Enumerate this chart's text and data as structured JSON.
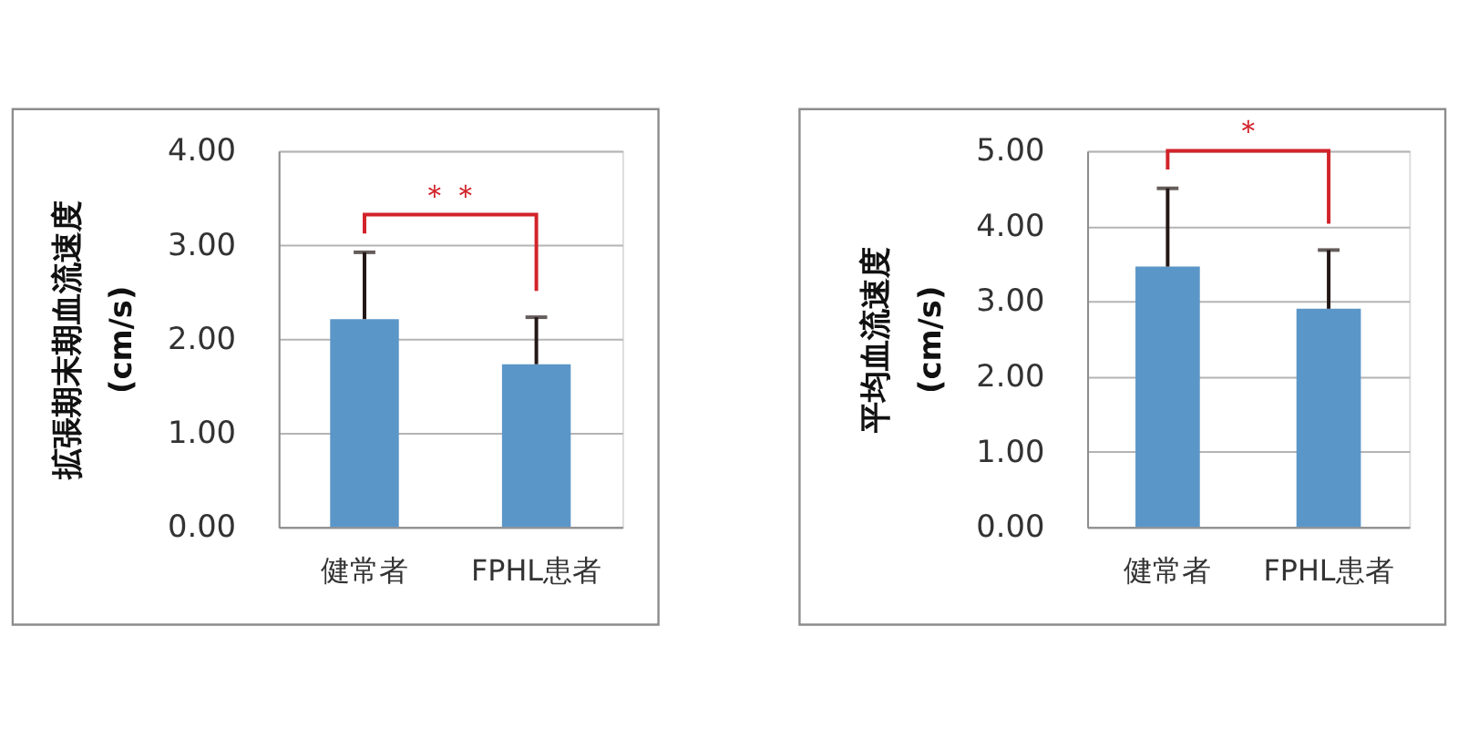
{
  "chart_data": [
    {
      "type": "bar",
      "categories": [
        "健常者",
        "FPHL患者"
      ],
      "values": [
        2.21,
        1.73
      ],
      "errors": [
        [
          2.21,
          2.92
        ],
        [
          1.73,
          2.23
        ]
      ],
      "color": "#5b96c8",
      "ylabel": "拡張期末期血流速度\n(cm/s)",
      "ylim": [
        0,
        4
      ],
      "yticks": [
        {
          "value": 0,
          "label": "0.00"
        },
        {
          "value": 1,
          "label": "1.00"
        },
        {
          "value": 2,
          "label": "2.00"
        },
        {
          "value": 3,
          "label": "3.00"
        },
        {
          "value": 4,
          "label": "4.00"
        }
      ],
      "grid": "y",
      "annotations": [
        "＊＊"
      ]
    },
    {
      "type": "bar",
      "categories": [
        "健常者",
        "FPHL患者"
      ],
      "values": [
        3.46,
        2.9
      ],
      "errors": [
        [
          3.46,
          4.5
        ],
        [
          2.9,
          3.68
        ]
      ],
      "color": "#5b96c8",
      "ylabel": "平均血流速度\n(cm/s)",
      "ylim": [
        0,
        5
      ],
      "yticks": [
        {
          "value": 0,
          "label": "0.00"
        },
        {
          "value": 1,
          "label": "1.00"
        },
        {
          "value": 2,
          "label": "2.00"
        },
        {
          "value": 3,
          "label": "3.00"
        },
        {
          "value": 4,
          "label": "4.00"
        },
        {
          "value": 5,
          "label": "5.00"
        }
      ],
      "grid": "y",
      "annotations": [
        "＊"
      ]
    }
  ]
}
